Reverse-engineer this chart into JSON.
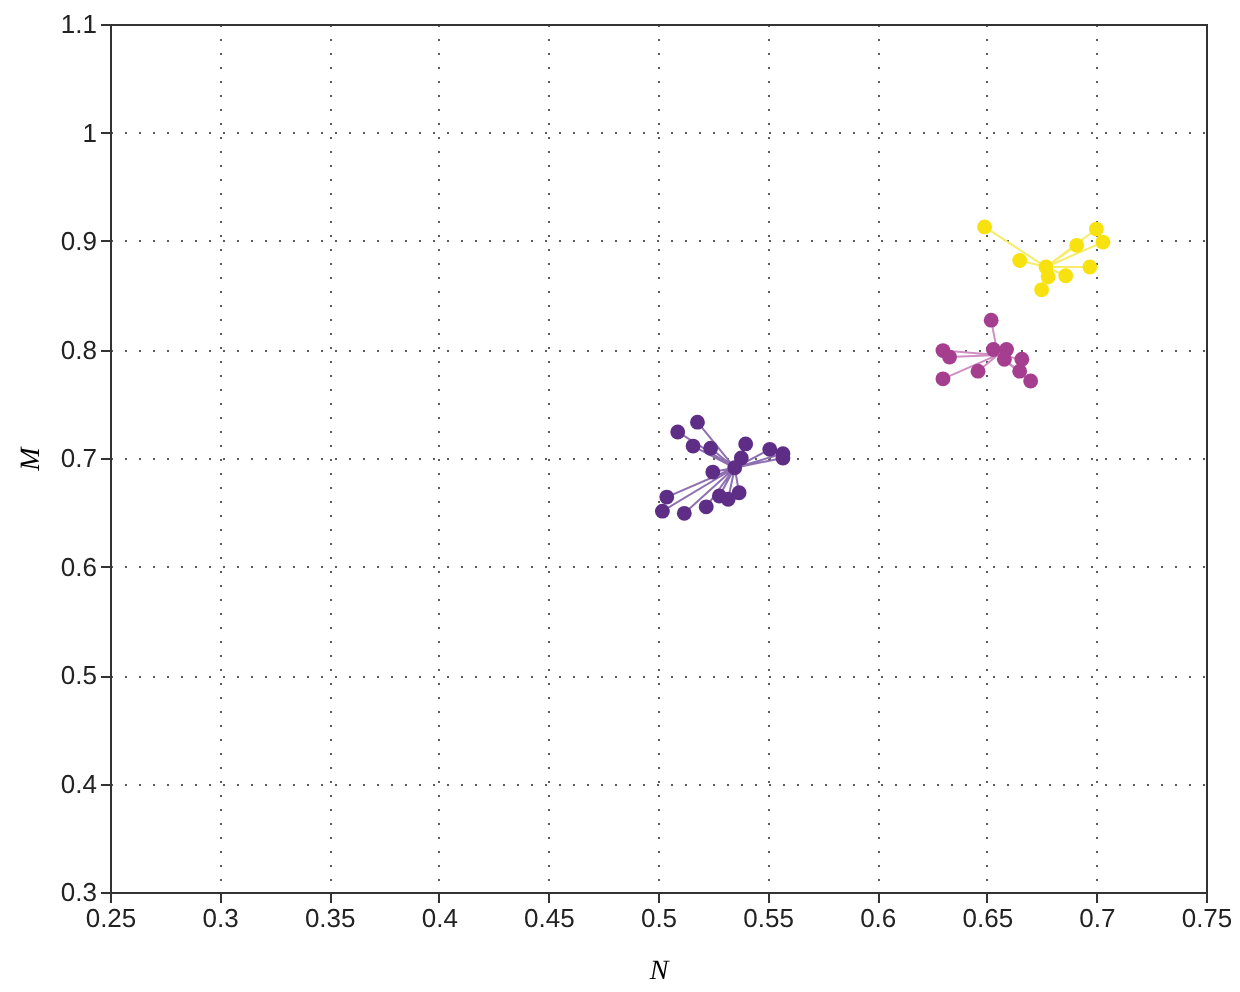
{
  "chart_data": {
    "type": "scatter",
    "xlabel": "N",
    "ylabel": "M",
    "xlim": [
      0.25,
      0.75
    ],
    "ylim": [
      0.3,
      1.1
    ],
    "xticks": [
      0.25,
      0.3,
      0.35,
      0.4,
      0.45,
      0.5,
      0.55,
      0.6,
      0.65,
      0.7,
      0.75
    ],
    "yticks": [
      0.3,
      0.4,
      0.5,
      0.6,
      0.7,
      0.8,
      0.9,
      1,
      1.1
    ],
    "grid": true,
    "series": [
      {
        "type": "line",
        "color": "#8e6fb0",
        "x": [
          0.535,
          0.509,
          0.535,
          0.518,
          0.535,
          0.516,
          0.535,
          0.524,
          0.535,
          0.54,
          0.535,
          0.538,
          0.535,
          0.525,
          0.535,
          0.551,
          0.535,
          0.557,
          0.535,
          0.557,
          0.535,
          0.504,
          0.535,
          0.502,
          0.535,
          0.512,
          0.535,
          0.522,
          0.535,
          0.528,
          0.535,
          0.532,
          0.535,
          0.537
        ],
        "values": [
          0.691,
          0.724,
          0.691,
          0.733,
          0.691,
          0.711,
          0.691,
          0.709,
          0.691,
          0.713,
          0.691,
          0.7,
          0.691,
          0.687,
          0.691,
          0.708,
          0.691,
          0.704,
          0.691,
          0.7,
          0.691,
          0.664,
          0.691,
          0.651,
          0.691,
          0.649,
          0.691,
          0.655,
          0.691,
          0.665,
          0.691,
          0.662,
          0.691,
          0.668
        ]
      },
      {
        "type": "line",
        "color": "#cf8fc3",
        "x": [
          0.655,
          0.652,
          0.655,
          0.63,
          0.655,
          0.633,
          0.655,
          0.63,
          0.655,
          0.646,
          0.655,
          0.653,
          0.655,
          0.659,
          0.655,
          0.658,
          0.655,
          0.666,
          0.655,
          0.665,
          0.655,
          0.67
        ],
        "values": [
          0.795,
          0.827,
          0.795,
          0.799,
          0.795,
          0.793,
          0.795,
          0.773,
          0.795,
          0.78,
          0.795,
          0.8,
          0.795,
          0.8,
          0.795,
          0.791,
          0.795,
          0.791,
          0.795,
          0.78,
          0.795,
          0.771
        ]
      },
      {
        "type": "line",
        "color": "#f7ec6a",
        "x": [
          0.677,
          0.649,
          0.677,
          0.7,
          0.677,
          0.703,
          0.677,
          0.691,
          0.677,
          0.665,
          0.677,
          0.697,
          0.677,
          0.686,
          0.677,
          0.678,
          0.677,
          0.675
        ],
        "values": [
          0.876,
          0.913,
          0.876,
          0.911,
          0.876,
          0.899,
          0.876,
          0.896,
          0.876,
          0.882,
          0.876,
          0.876,
          0.876,
          0.868,
          0.876,
          0.867,
          0.876,
          0.855
        ]
      },
      {
        "marker": "circle",
        "color": "#5e2d85",
        "x": [
          0.509,
          0.518,
          0.516,
          0.524,
          0.54,
          0.538,
          0.535,
          0.525,
          0.551,
          0.557,
          0.557,
          0.504,
          0.502,
          0.512,
          0.522,
          0.528,
          0.532,
          0.537
        ],
        "values": [
          0.724,
          0.733,
          0.711,
          0.709,
          0.713,
          0.7,
          0.691,
          0.687,
          0.708,
          0.704,
          0.7,
          0.664,
          0.651,
          0.649,
          0.655,
          0.665,
          0.662,
          0.668
        ]
      },
      {
        "marker": "circle",
        "color": "#a53e8f",
        "x": [
          0.652,
          0.63,
          0.633,
          0.63,
          0.646,
          0.653,
          0.659,
          0.658,
          0.666,
          0.665,
          0.67
        ],
        "values": [
          0.827,
          0.799,
          0.793,
          0.773,
          0.78,
          0.8,
          0.8,
          0.791,
          0.791,
          0.78,
          0.771
        ]
      },
      {
        "marker": "circle",
        "color": "#f7e20f",
        "x": [
          0.649,
          0.7,
          0.703,
          0.691,
          0.665,
          0.697,
          0.686,
          0.678,
          0.675,
          0.677
        ],
        "values": [
          0.913,
          0.911,
          0.899,
          0.896,
          0.882,
          0.876,
          0.868,
          0.867,
          0.855,
          0.876
        ]
      }
    ]
  }
}
